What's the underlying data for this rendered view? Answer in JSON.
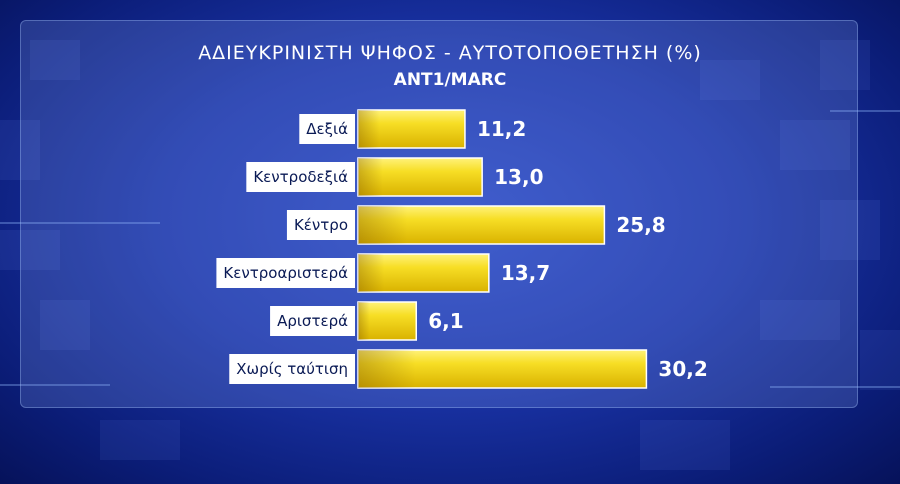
{
  "chart_data": {
    "type": "bar",
    "orientation": "horizontal",
    "title": "ΑΔΙΕΥΚΡΙΝΙΣΤΗ ΨΗΦΟΣ - ΑΥΤΟΤΟΠΟΘΕΤΗΣΗ (%)",
    "subtitle": "ANT1/MARC",
    "categories": [
      "Δεξιά",
      "Κεντροδεξιά",
      "Κέντρο",
      "Κεντροαριστερά",
      "Αριστερά",
      "Χωρίς ταύτιση"
    ],
    "values": [
      11.2,
      13.0,
      25.8,
      13.7,
      6.1,
      30.2
    ],
    "value_labels": [
      "11,2",
      "13,0",
      "25,8",
      "13,7",
      "6,1",
      "30,2"
    ],
    "bar_color": "#f2d21a",
    "label_box_color": "#ffffff",
    "grid": false,
    "legend": "none"
  }
}
